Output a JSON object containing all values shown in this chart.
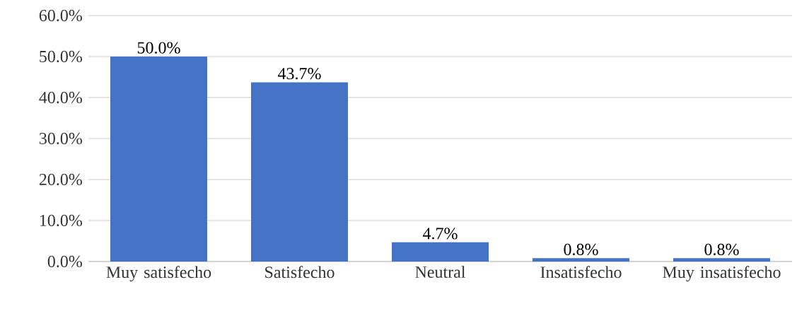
{
  "chart_data": {
    "type": "bar",
    "categories": [
      "Muy satisfecho",
      "Satisfecho",
      "Neutral",
      "Insatisfecho",
      "Muy insatisfecho"
    ],
    "values": [
      50.0,
      43.7,
      4.7,
      0.8,
      0.8
    ],
    "value_labels": [
      "50.0%",
      "43.7%",
      "4.7%",
      "0.8%",
      "0.8%"
    ],
    "color": "#4472c4",
    "ylim": [
      0,
      60
    ],
    "yticks": [
      {
        "value": 0,
        "label": "0.0%"
      },
      {
        "value": 10,
        "label": "10.0%"
      },
      {
        "value": 20,
        "label": "20.0%"
      },
      {
        "value": 30,
        "label": "30.0%"
      },
      {
        "value": 40,
        "label": "40.0%"
      },
      {
        "value": 50,
        "label": "50.0%"
      },
      {
        "value": 60,
        "label": "60.0%"
      }
    ],
    "grid": "y"
  }
}
